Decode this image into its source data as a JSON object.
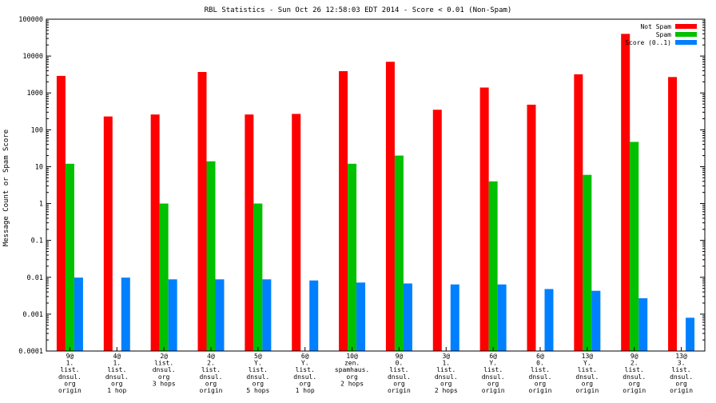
{
  "chart_data": {
    "type": "bar",
    "title": "RBL Statistics - Sun Oct 26 12:58:03 EDT 2014 - Score < 0.01 (Non-Spam)",
    "xlabel": "",
    "ylabel": "Message Count or Spam Score",
    "yscale": "log",
    "ylim": [
      0.0001,
      100000
    ],
    "yticks": [
      "0.0001",
      "0.001",
      "0.01",
      "0.1",
      "1",
      "10",
      "100",
      "1000",
      "10000",
      "100000"
    ],
    "legend_position": "top-right",
    "categories": [
      [
        "9@",
        "1.",
        "list.",
        "dnsul.",
        "org",
        "origin"
      ],
      [
        "4@",
        "1.",
        "list.",
        "dnsul.",
        "org",
        "1 hop"
      ],
      [
        "2@",
        "list.",
        "dnsul.",
        "org",
        "3 hops"
      ],
      [
        "4@",
        "2.",
        "list.",
        "dnsul.",
        "org",
        "origin"
      ],
      [
        "5@",
        "Y.",
        "list.",
        "dnsul.",
        "org",
        "5 hops"
      ],
      [
        "6@",
        "Y.",
        "list.",
        "dnsul.",
        "org",
        "1 hop"
      ],
      [
        "10@",
        "zen.",
        "spamhaus.",
        "org",
        "2 hops"
      ],
      [
        "9@",
        "0.",
        "list.",
        "dnsul.",
        "org",
        "origin"
      ],
      [
        "3@",
        "1.",
        "list.",
        "dnsul.",
        "org",
        "2 hops"
      ],
      [
        "6@",
        "Y.",
        "list.",
        "dnsul.",
        "org",
        "origin"
      ],
      [
        "6@",
        "0.",
        "list.",
        "dnsul.",
        "org",
        "origin"
      ],
      [
        "13@",
        "Y.",
        "list.",
        "dnsul.",
        "org",
        "origin"
      ],
      [
        "9@",
        "2.",
        "list.",
        "dnsul.",
        "org",
        "origin"
      ],
      [
        "13@",
        "3.",
        "list.",
        "dnsul.",
        "org",
        "origin"
      ]
    ],
    "series": [
      {
        "name": "Not Spam",
        "color": "#ff0000",
        "values": [
          2900,
          230,
          260,
          3700,
          260,
          270,
          3900,
          7000,
          350,
          1400,
          480,
          3200,
          40000,
          2700
        ]
      },
      {
        "name": "Spam",
        "color": "#00c000",
        "values": [
          12,
          null,
          1,
          14,
          1,
          null,
          12,
          20,
          null,
          4,
          null,
          6,
          47,
          null
        ]
      },
      {
        "name": "Score (0..1)",
        "color": "#0080ff",
        "values": [
          0.0098,
          0.0098,
          0.0088,
          0.0088,
          0.0088,
          0.0082,
          0.0072,
          0.0068,
          0.0064,
          0.0064,
          0.0048,
          0.0043,
          0.0027,
          0.0008
        ]
      }
    ]
  }
}
